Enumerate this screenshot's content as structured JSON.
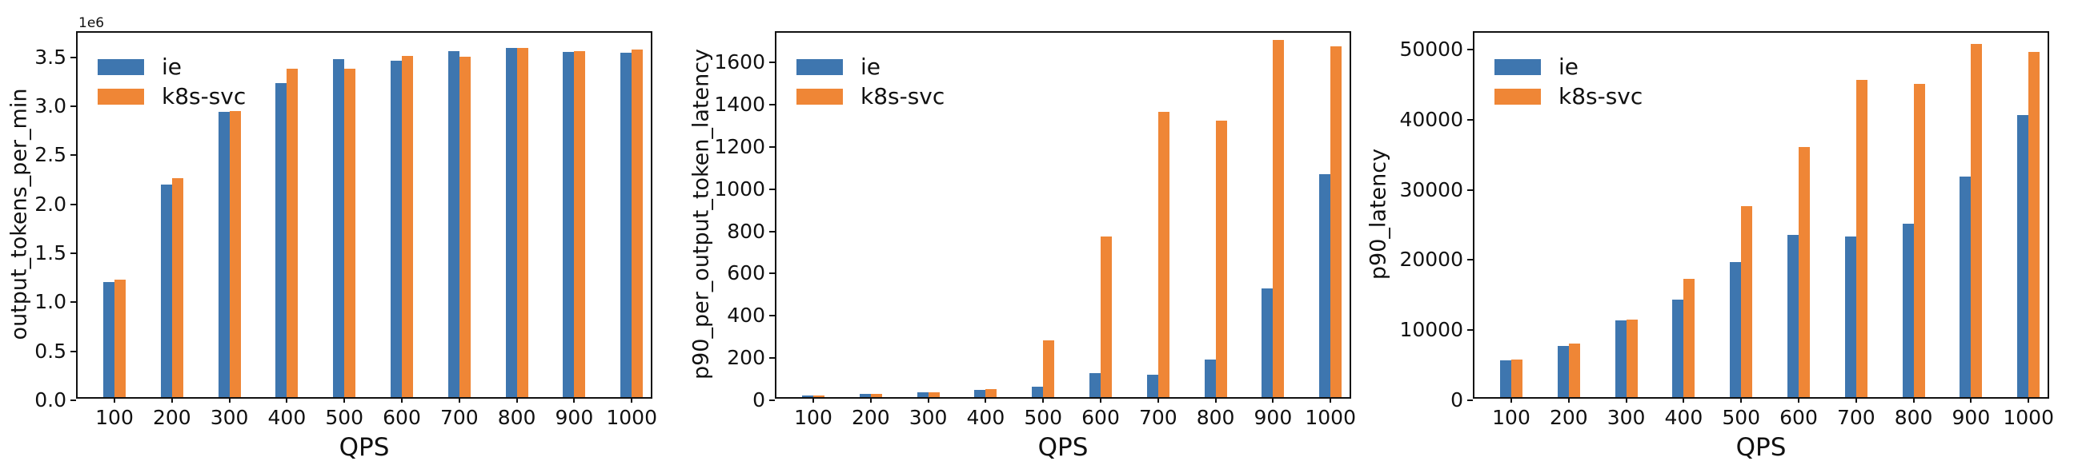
{
  "colors": {
    "series_ie": "#3e76af",
    "series_k8s_svc": "#ef8636",
    "axis": "#111111",
    "background": "#ffffff"
  },
  "legend": {
    "position": "upper left",
    "items": [
      {
        "label": "ie",
        "color": "#3e76af"
      },
      {
        "label": "k8s-svc",
        "color": "#ef8636"
      }
    ]
  },
  "chart_data": [
    {
      "type": "bar",
      "title": "",
      "ylabel": "output_tokens_per_min",
      "xlabel": "QPS",
      "offset_text": "1e6",
      "grid": false,
      "legend_position": "upper left",
      "categories": [
        100,
        200,
        300,
        400,
        500,
        600,
        700,
        800,
        900,
        1000
      ],
      "series": [
        {
          "name": "ie",
          "color": "#3e76af",
          "values": [
            1170000,
            2170000,
            2910000,
            3200000,
            3450000,
            3430000,
            3530000,
            3560000,
            3520000,
            3510000
          ]
        },
        {
          "name": "k8s-svc",
          "color": "#ef8636",
          "values": [
            1200000,
            2230000,
            2920000,
            3350000,
            3350000,
            3480000,
            3470000,
            3560000,
            3530000,
            3550000
          ]
        }
      ],
      "ylim": [
        0,
        3750000
      ],
      "yticks": [
        {
          "value": 0,
          "label": "0.0"
        },
        {
          "value": 500000,
          "label": "0.5"
        },
        {
          "value": 1000000,
          "label": "1.0"
        },
        {
          "value": 1500000,
          "label": "1.5"
        },
        {
          "value": 2000000,
          "label": "2.0"
        },
        {
          "value": 2500000,
          "label": "2.5"
        },
        {
          "value": 3000000,
          "label": "3.0"
        },
        {
          "value": 3500000,
          "label": "3.5"
        }
      ]
    },
    {
      "type": "bar",
      "title": "",
      "ylabel": "p90_per_output_token_latency",
      "xlabel": "QPS",
      "offset_text": "",
      "grid": false,
      "legend_position": "upper left",
      "categories": [
        100,
        200,
        300,
        400,
        500,
        600,
        700,
        800,
        900,
        1000
      ],
      "series": [
        {
          "name": "ie",
          "color": "#3e76af",
          "values": [
            8,
            16,
            23,
            33,
            48,
            115,
            107,
            176,
            515,
            1055
          ]
        },
        {
          "name": "k8s-svc",
          "color": "#ef8636",
          "values": [
            8,
            16,
            23,
            38,
            270,
            760,
            1350,
            1310,
            1690,
            1660
          ]
        }
      ],
      "ylim": [
        0,
        1740
      ],
      "yticks": [
        {
          "value": 0,
          "label": "0"
        },
        {
          "value": 200,
          "label": "200"
        },
        {
          "value": 400,
          "label": "400"
        },
        {
          "value": 600,
          "label": "600"
        },
        {
          "value": 800,
          "label": "800"
        },
        {
          "value": 1000,
          "label": "1000"
        },
        {
          "value": 1200,
          "label": "1200"
        },
        {
          "value": 1400,
          "label": "1400"
        },
        {
          "value": 1600,
          "label": "1600"
        }
      ]
    },
    {
      "type": "bar",
      "title": "",
      "ylabel": "p90_latency",
      "xlabel": "QPS",
      "offset_text": "",
      "grid": false,
      "legend_position": "upper left",
      "categories": [
        100,
        200,
        300,
        400,
        500,
        600,
        700,
        800,
        900,
        1000
      ],
      "series": [
        {
          "name": "ie",
          "color": "#3e76af",
          "values": [
            5200,
            7300,
            10900,
            13900,
            19200,
            23100,
            22900,
            24700,
            31400,
            40200
          ]
        },
        {
          "name": "k8s-svc",
          "color": "#ef8636",
          "values": [
            5400,
            7600,
            11100,
            16900,
            27200,
            35600,
            45200,
            44700,
            50300,
            49200
          ]
        }
      ],
      "ylim": [
        0,
        52400
      ],
      "yticks": [
        {
          "value": 0,
          "label": "0"
        },
        {
          "value": 10000,
          "label": "10000"
        },
        {
          "value": 20000,
          "label": "20000"
        },
        {
          "value": 30000,
          "label": "30000"
        },
        {
          "value": 40000,
          "label": "40000"
        },
        {
          "value": 50000,
          "label": "50000"
        }
      ]
    }
  ]
}
